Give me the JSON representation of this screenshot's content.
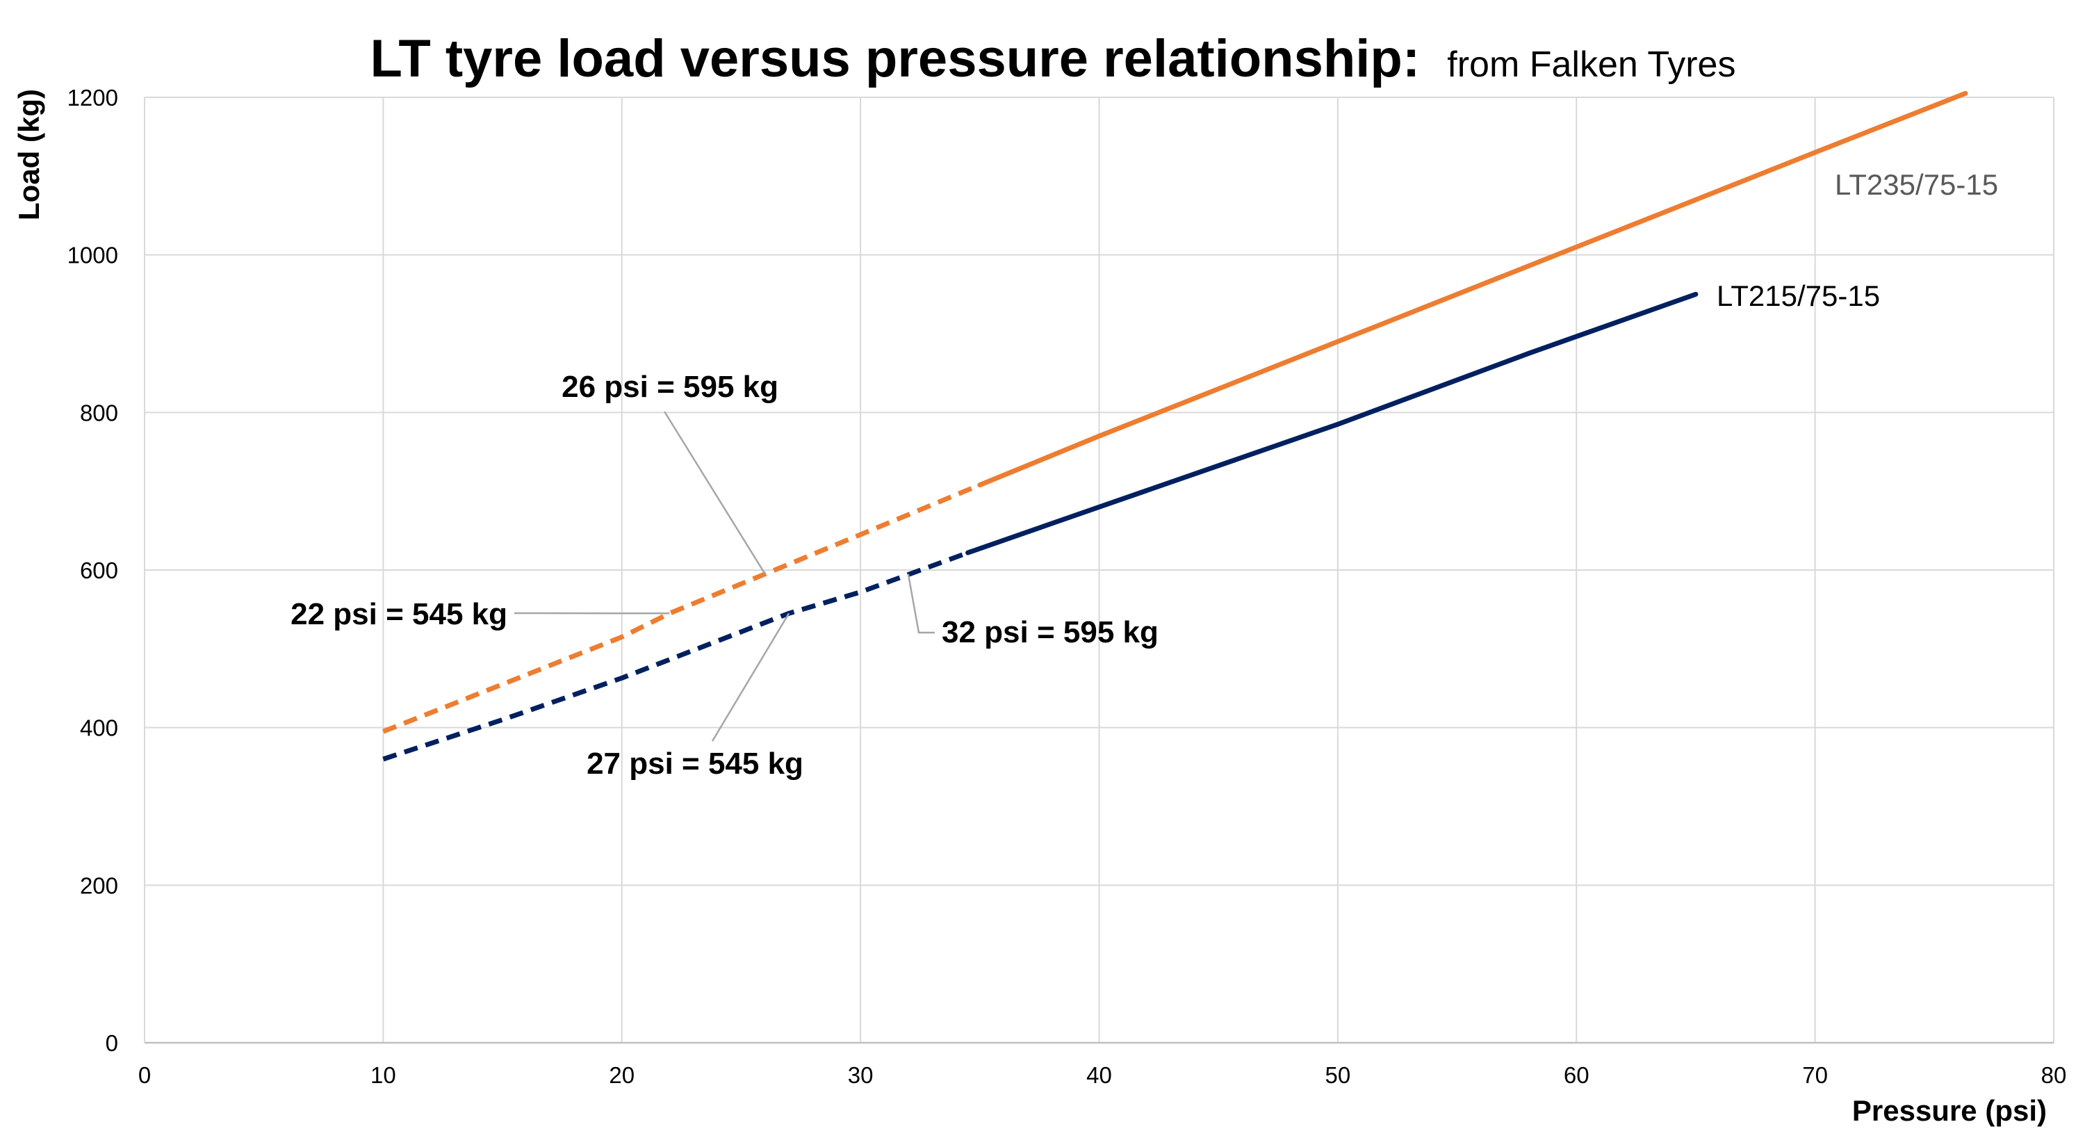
{
  "chart_data": {
    "type": "line",
    "title": "LT tyre load versus pressure relationship:",
    "subtitle": "from Falken Tyres",
    "xlabel": "Pressure (psi)",
    "ylabel": "Load (kg)",
    "xlim": [
      0,
      80
    ],
    "ylim": [
      0,
      1200
    ],
    "xticks": [
      "0",
      "10",
      "20",
      "30",
      "40",
      "50",
      "60",
      "70",
      "80"
    ],
    "yticks": [
      "0",
      "200",
      "400",
      "600",
      "800",
      "1000",
      "1200"
    ],
    "grid": true,
    "series": [
      {
        "name": "LT235/75-15",
        "color": "#ed7d31",
        "dashed": {
          "x": [
            10,
            15,
            20,
            22,
            26,
            30,
            35
          ],
          "y": [
            395,
            455,
            515,
            545,
            595,
            645,
            708
          ]
        },
        "solid": {
          "x": [
            35,
            40,
            50,
            60,
            70,
            76.3
          ],
          "y": [
            708,
            770,
            890,
            1010,
            1130,
            1205
          ]
        }
      },
      {
        "name": "LT215/75-15",
        "color": "#002060",
        "dashed": {
          "x": [
            10,
            15,
            20,
            27,
            30,
            34.5
          ],
          "y": [
            360,
            410,
            463,
            545,
            572,
            622
          ]
        },
        "solid": {
          "x": [
            34.5,
            40,
            50,
            58,
            65
          ],
          "y": [
            622,
            680,
            785,
            875,
            950
          ]
        }
      }
    ],
    "annotations": [
      {
        "id": "a26",
        "text": "26 psi = 595 kg",
        "x": 26,
        "y": 595
      },
      {
        "id": "a22",
        "text": "22 psi = 545 kg",
        "x": 22,
        "y": 545
      },
      {
        "id": "a32",
        "text": "32 psi = 595 kg",
        "x": 32,
        "y": 595
      },
      {
        "id": "a27",
        "text": "27 psi = 545 kg",
        "x": 27,
        "y": 545
      }
    ]
  }
}
